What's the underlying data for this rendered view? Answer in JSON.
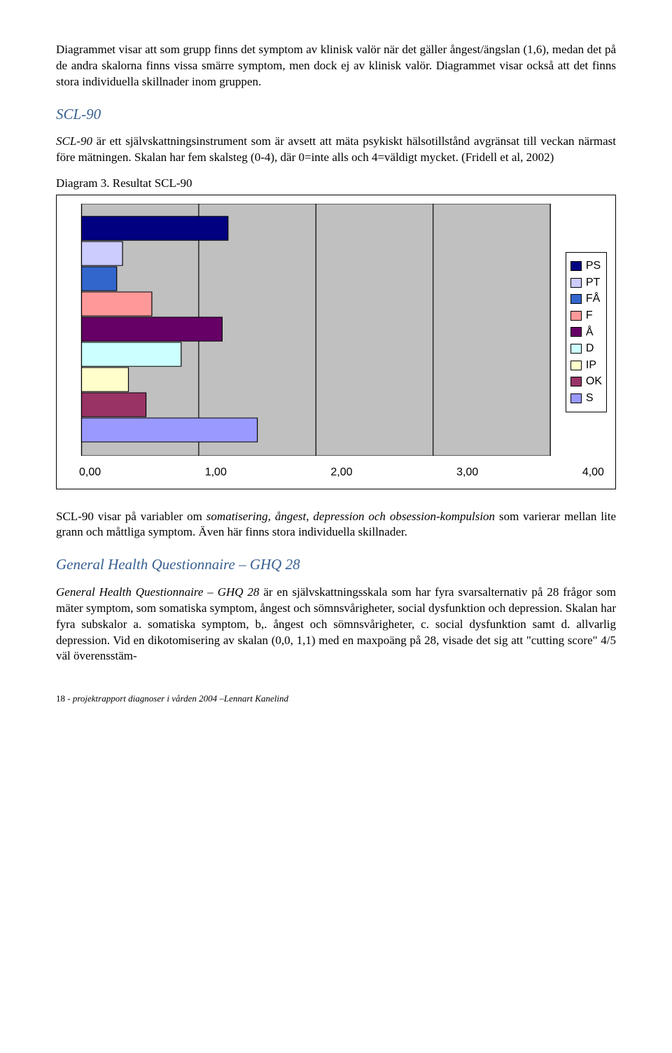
{
  "para1": "Diagrammet visar att som grupp finns det symptom av klinisk valör när det gäller ångest/ängslan (1,6), medan det på de andra skalorna finns vissa smärre symptom, men dock ej av klinisk valör. Diagrammet visar också att det finns stora individuella skillnader inom gruppen.",
  "heading1": "SCL-90",
  "para2_pre": "SCL-90",
  "para2_rest": " är ett självskattningsinstrument som är avsett att mäta psykiskt hälsotillstånd avgränsat till veckan närmast före mätningen. Skalan har fem skalsteg (0-4), där 0=inte alls och 4=väldigt mycket. (Fridell et al, 2002)",
  "diagram_label": "Diagram 3. Resultat SCL-90",
  "chart": {
    "type": "bar-horizontal",
    "xlim": [
      0,
      4
    ],
    "xticks": [
      "0,00",
      "1,00",
      "2,00",
      "3,00",
      "4,00"
    ],
    "plot_bg": "#c0c0c0",
    "grid_color": "#000000",
    "series": [
      {
        "label": "PS",
        "value": 1.25,
        "color": "#000080"
      },
      {
        "label": "PT",
        "value": 0.35,
        "color": "#ccccff"
      },
      {
        "label": "FÅ",
        "value": 0.3,
        "color": "#3366cc"
      },
      {
        "label": "F",
        "value": 0.6,
        "color": "#ff9999"
      },
      {
        "label": "Å",
        "value": 1.2,
        "color": "#660066"
      },
      {
        "label": "D",
        "value": 0.85,
        "color": "#ccffff"
      },
      {
        "label": "IP",
        "value": 0.4,
        "color": "#ffffcc"
      },
      {
        "label": "OK",
        "value": 0.55,
        "color": "#993366"
      },
      {
        "label": "S",
        "value": 1.5,
        "color": "#9999ff"
      }
    ]
  },
  "para3_pre": "SCL-90 visar på variabler om ",
  "para3_it": "somatisering, ångest, depression och obsession-kompulsion",
  "para3_rest": " som varierar mellan lite grann och måttliga symptom. Även här finns stora individuella skillnader.",
  "heading2": "General Health Questionnaire – GHQ 28",
  "para4_pre": "General Health Questionnaire – GHQ 28",
  "para4_rest": " är en självskattningsskala som har fyra svarsalternativ på 28 frågor som mäter symptom, som somatiska symptom, ångest och sömnsvårigheter, social dysfunktion och depression. Skalan har fyra subskalor a. somatiska symptom, b,. ångest och sömnsvårigheter, c. social dysfunktion samt d. allvarlig depression. Vid en dikotomisering av skalan (0,0, 1,1) med en maxpoäng på 28, visade det sig att \"cutting score\" 4/5 väl överensstäm-",
  "footer_page": "18",
  "footer_text": "- projektrapport diagnoser i vården 2004 –Lennart Kanelind"
}
